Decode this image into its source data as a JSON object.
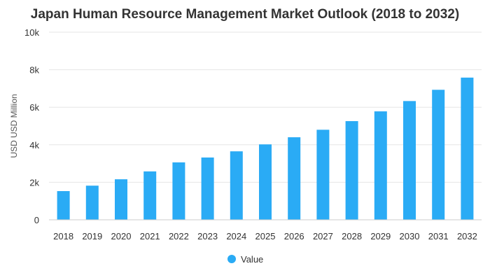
{
  "chart_data": {
    "type": "bar",
    "title": "Japan Human Resource Management Market Outlook (2018 to 2032)",
    "ylabel": "USD USD Million",
    "xlabel": "",
    "categories": [
      "2018",
      "2019",
      "2020",
      "2021",
      "2022",
      "2023",
      "2024",
      "2025",
      "2026",
      "2027",
      "2028",
      "2029",
      "2030",
      "2031",
      "2032"
    ],
    "series": [
      {
        "name": "Value",
        "color": "#2aabf5",
        "values": [
          1530,
          1820,
          2160,
          2580,
          3060,
          3320,
          3650,
          4020,
          4400,
          4800,
          5260,
          5780,
          6330,
          6930,
          7580
        ]
      }
    ],
    "ylim": [
      0,
      10000
    ],
    "yticks": [
      0,
      2000,
      4000,
      6000,
      8000,
      10000
    ],
    "ytick_labels": [
      "0",
      "2k",
      "4k",
      "6k",
      "8k",
      "10k"
    ],
    "grid": true,
    "legend": {
      "placement": "bottom-center",
      "label": "Value"
    }
  }
}
